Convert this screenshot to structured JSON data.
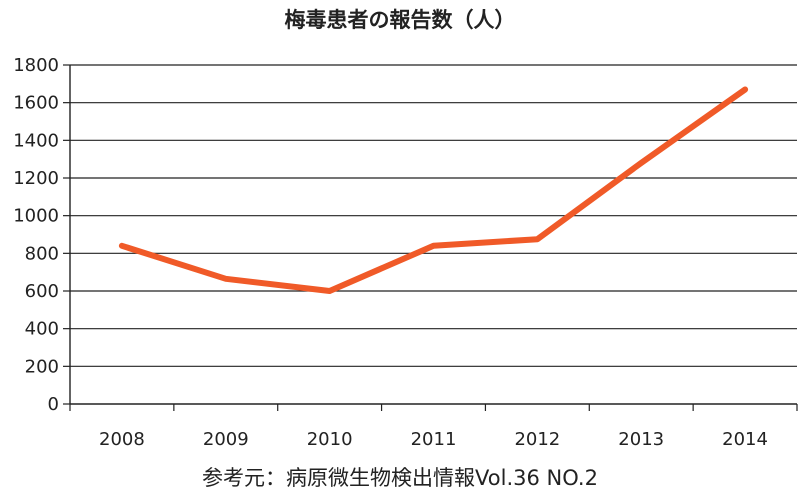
{
  "chart_data": {
    "type": "line",
    "title": "梅毒患者の報告数（人）",
    "source": "参考元：病原微生物検出情報Vol.36 NO.2",
    "categories": [
      "2008",
      "2009",
      "2010",
      "2011",
      "2012",
      "2013",
      "2014"
    ],
    "series": [
      {
        "values": [
          840,
          665,
          600,
          840,
          875,
          1280,
          1670
        ],
        "color": "#f05a28"
      }
    ],
    "yticks": [
      "0",
      "200",
      "400",
      "600",
      "800",
      "1000",
      "1200",
      "1400",
      "1600",
      "1800"
    ],
    "ylim": [
      0,
      1800
    ],
    "grid": true,
    "legend": "none"
  }
}
